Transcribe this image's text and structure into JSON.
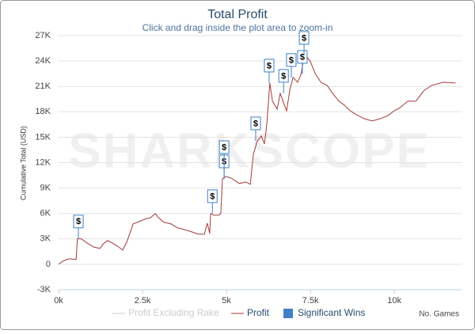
{
  "chart_data": {
    "type": "line",
    "title": "Total Profit",
    "subtitle": "Click and drag inside the plot area to zoom-in",
    "y_label": "Cumulative Total (USD)",
    "x_label": "No. Games",
    "watermark": "SHARKSCOPE",
    "xlim": [
      0,
      12000
    ],
    "xticks": [
      {
        "value": 0,
        "label": "0k"
      },
      {
        "value": 2500,
        "label": "2.5k"
      },
      {
        "value": 5000,
        "label": "5k"
      },
      {
        "value": 7500,
        "label": "7.5k"
      },
      {
        "value": 10000,
        "label": "10k"
      }
    ],
    "ylim": [
      -3000,
      27000
    ],
    "yticks": [
      {
        "value": -3000,
        "label": "-3K"
      },
      0,
      {
        "value": 3000,
        "label": "3K"
      },
      {
        "value": 6000,
        "label": "6K"
      },
      {
        "value": 9000,
        "label": "9K"
      },
      {
        "value": 12000,
        "label": "12K"
      },
      {
        "value": 15000,
        "label": "15K"
      },
      {
        "value": 18000,
        "label": "18K"
      },
      {
        "value": 21000,
        "label": "21K"
      },
      {
        "value": 24000,
        "label": "24K"
      },
      {
        "value": 27000,
        "label": "27K"
      }
    ],
    "grid": true,
    "series": [
      {
        "name": "Profit Excluding Rake",
        "color": "#cccccc",
        "visible": false
      },
      {
        "name": "Profit",
        "color": "#a33a3a",
        "x": [
          0,
          100,
          240,
          330,
          520,
          560,
          680,
          850,
          1040,
          1230,
          1340,
          1460,
          1600,
          1750,
          1910,
          2030,
          2220,
          2400,
          2570,
          2740,
          2880,
          2970,
          3140,
          3350,
          3540,
          3730,
          3960,
          4170,
          4340,
          4430,
          4500,
          4530,
          4620,
          4760,
          4830,
          4880,
          4980,
          5140,
          5380,
          5570,
          5710,
          5750,
          5800,
          5920,
          6040,
          6130,
          6200,
          6290,
          6370,
          6510,
          6600,
          6700,
          6790,
          6890,
          6980,
          7120,
          7220,
          7290,
          7360,
          7500,
          7640,
          7810,
          8000,
          8160,
          8350,
          8510,
          8680,
          8870,
          9100,
          9340,
          9580,
          9810,
          10000,
          10170,
          10400,
          10640,
          10870,
          11110,
          11460,
          11820
        ],
        "values": [
          0,
          300,
          560,
          650,
          560,
          3000,
          3000,
          2500,
          2050,
          1870,
          2430,
          2800,
          2500,
          2150,
          1680,
          2620,
          4770,
          5050,
          5330,
          5510,
          5980,
          5510,
          4950,
          4770,
          4300,
          4110,
          3830,
          3550,
          3550,
          4860,
          3640,
          5980,
          5790,
          5790,
          5980,
          10090,
          10370,
          10190,
          9530,
          9720,
          9440,
          11120,
          12990,
          14580,
          15140,
          14210,
          16540,
          21400,
          19250,
          18320,
          20190,
          19070,
          18130,
          20650,
          22060,
          21500,
          22430,
          24020,
          24670,
          23930,
          22520,
          21500,
          21120,
          20190,
          19250,
          18790,
          18130,
          17660,
          17200,
          16920,
          17200,
          17570,
          18130,
          18500,
          19250,
          19250,
          20470,
          21120,
          21500,
          21400
        ]
      },
      {
        "name": "Significant Wins",
        "color": "#3f7fc6",
        "flag_label": "$",
        "x": [
          590,
          4580,
          4930,
          4930,
          5870,
          6270,
          6700,
          6930,
          7260,
          7310
        ],
        "values": [
          3000,
          5980,
          10090,
          10090,
          14580,
          21400,
          20190,
          22060,
          22430,
          24670
        ]
      }
    ]
  }
}
